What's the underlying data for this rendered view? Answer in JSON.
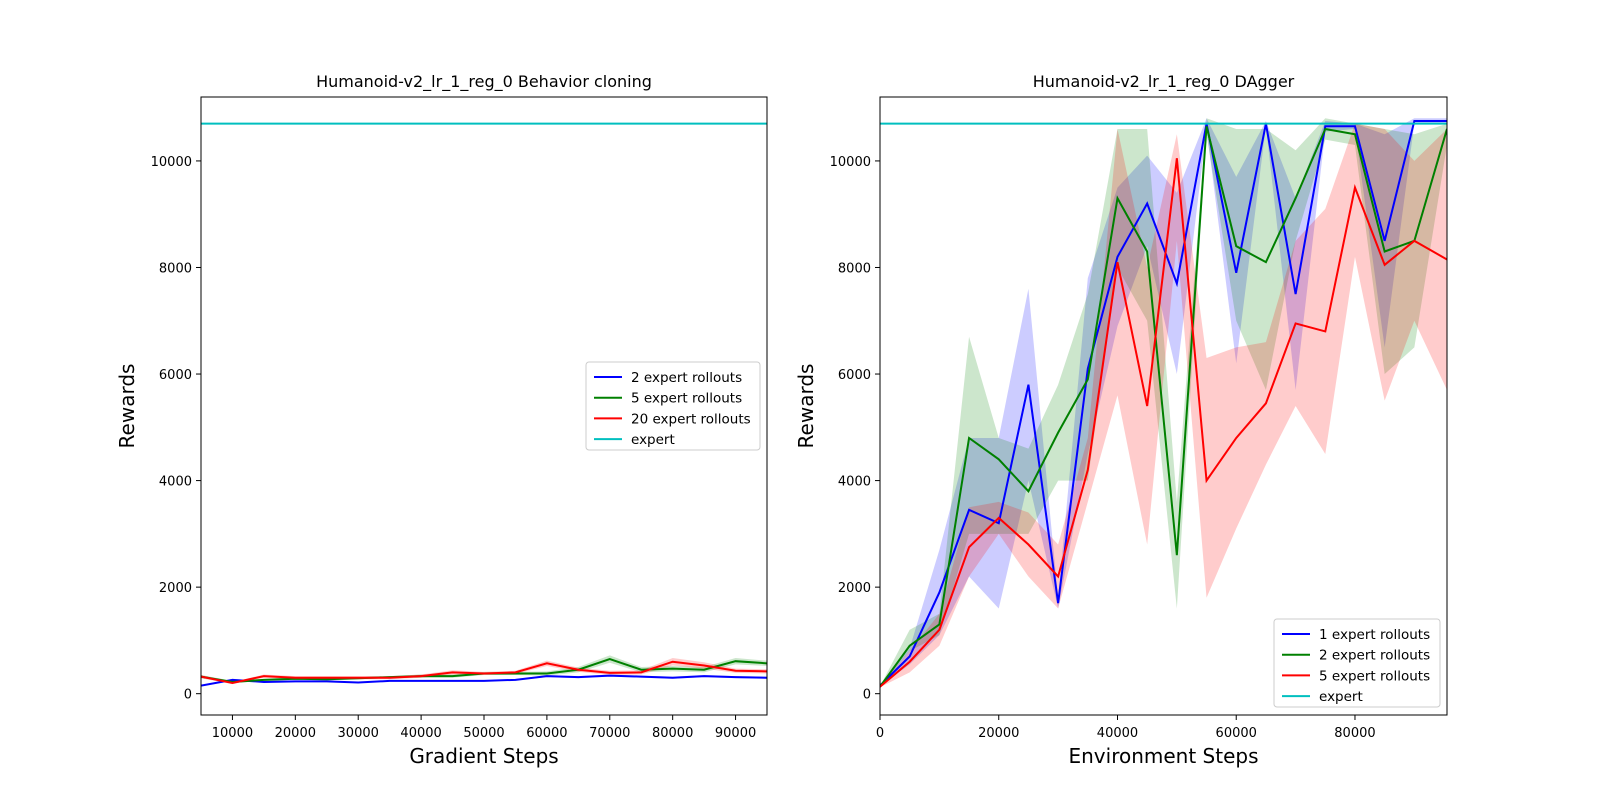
{
  "chart_data": [
    {
      "type": "line",
      "title": "Humanoid-v2_lr_1_reg_0 Behavior cloning",
      "xlabel": "Gradient Steps",
      "ylabel": "Rewards",
      "xlim": [
        5000,
        95000
      ],
      "ylim": [
        -400,
        11200
      ],
      "xticks": [
        10000,
        20000,
        30000,
        40000,
        50000,
        60000,
        70000,
        80000,
        90000
      ],
      "yticks": [
        0,
        2000,
        4000,
        6000,
        8000,
        10000
      ],
      "legend_position": "center-right",
      "x": [
        5000,
        10000,
        15000,
        20000,
        25000,
        30000,
        35000,
        40000,
        45000,
        50000,
        55000,
        60000,
        65000,
        70000,
        75000,
        80000,
        85000,
        90000,
        95000
      ],
      "series": [
        {
          "name": "2 expert rollouts",
          "color": "#0000ff",
          "values": [
            150,
            260,
            220,
            230,
            230,
            210,
            240,
            240,
            240,
            240,
            260,
            330,
            310,
            340,
            320,
            300,
            330,
            310,
            300
          ],
          "band_lo": [
            140,
            240,
            210,
            220,
            220,
            200,
            230,
            230,
            230,
            230,
            250,
            310,
            290,
            320,
            300,
            280,
            310,
            290,
            280
          ],
          "band_hi": [
            160,
            280,
            230,
            240,
            240,
            220,
            250,
            250,
            250,
            250,
            270,
            350,
            330,
            360,
            340,
            320,
            350,
            330,
            320
          ]
        },
        {
          "name": "5 expert rollouts",
          "color": "#008000",
          "values": [
            320,
            220,
            260,
            280,
            270,
            290,
            310,
            330,
            330,
            380,
            380,
            380,
            450,
            650,
            450,
            470,
            450,
            610,
            570
          ],
          "band_lo": [
            290,
            200,
            240,
            260,
            250,
            270,
            290,
            300,
            300,
            350,
            350,
            340,
            400,
            580,
            400,
            420,
            400,
            550,
            520
          ],
          "band_hi": [
            350,
            240,
            280,
            300,
            290,
            310,
            330,
            360,
            360,
            410,
            410,
            420,
            500,
            720,
            500,
            520,
            500,
            670,
            620
          ]
        },
        {
          "name": "20 expert rollouts",
          "color": "#ff0000",
          "values": [
            320,
            200,
            330,
            300,
            300,
            300,
            300,
            330,
            400,
            380,
            400,
            570,
            450,
            390,
            400,
            600,
            530,
            430,
            420
          ],
          "band_lo": [
            290,
            180,
            300,
            270,
            270,
            270,
            270,
            300,
            360,
            350,
            370,
            520,
            410,
            350,
            360,
            530,
            470,
            390,
            380
          ],
          "band_hi": [
            350,
            220,
            360,
            330,
            330,
            330,
            330,
            360,
            440,
            410,
            430,
            620,
            490,
            430,
            440,
            670,
            590,
            470,
            460
          ]
        },
        {
          "name": "expert",
          "color": "#00bfbf",
          "values": [
            10700,
            10700,
            10700,
            10700,
            10700,
            10700,
            10700,
            10700,
            10700,
            10700,
            10700,
            10700,
            10700,
            10700,
            10700,
            10700,
            10700,
            10700,
            10700
          ]
        }
      ]
    },
    {
      "type": "line",
      "title": "Humanoid-v2_lr_1_reg_0 DAgger",
      "xlabel": "Environment Steps",
      "ylabel": "Rewards",
      "xlim": [
        0,
        95500
      ],
      "ylim": [
        -400,
        11200
      ],
      "xticks": [
        0,
        20000,
        40000,
        60000,
        80000
      ],
      "yticks": [
        0,
        2000,
        4000,
        6000,
        8000,
        10000
      ],
      "legend_position": "lower-right",
      "x": [
        0,
        5000,
        10000,
        15000,
        20000,
        25000,
        30000,
        35000,
        40000,
        45000,
        50000,
        55000,
        60000,
        65000,
        70000,
        75000,
        80000,
        85000,
        90000,
        95500
      ],
      "series": [
        {
          "name": "1 expert rollouts",
          "color": "#0000ff",
          "values": [
            150,
            700,
            1900,
            3450,
            3200,
            5800,
            1700,
            6100,
            8200,
            9200,
            7700,
            10700,
            7900,
            10700,
            7500,
            10650,
            10650,
            8500,
            10750,
            10750
          ],
          "band_lo": [
            140,
            550,
            1100,
            2200,
            1600,
            4000,
            1600,
            4500,
            6900,
            8400,
            6000,
            10600,
            6200,
            10650,
            5700,
            10550,
            10600,
            6500,
            10700,
            10700
          ],
          "band_hi": [
            160,
            850,
            2700,
            4800,
            4800,
            7600,
            1800,
            7800,
            9500,
            10100,
            9400,
            10800,
            9700,
            10750,
            9300,
            10750,
            10700,
            10500,
            10800,
            10800
          ]
        },
        {
          "name": "2 expert rollouts",
          "color": "#008000",
          "values": [
            130,
            900,
            1300,
            4800,
            4400,
            3800,
            4900,
            5900,
            9300,
            8300,
            2600,
            10650,
            8400,
            8100,
            9300,
            10600,
            10500,
            8300,
            8500,
            10600
          ],
          "band_lo": [
            120,
            800,
            1100,
            3000,
            3000,
            3000,
            4000,
            4000,
            8000,
            7000,
            1600,
            10500,
            7000,
            5700,
            8500,
            10400,
            10300,
            6000,
            6500,
            10300
          ],
          "band_hi": [
            140,
            1200,
            1500,
            6700,
            4800,
            4600,
            5800,
            7500,
            10600,
            10600,
            3600,
            10800,
            10600,
            10600,
            10200,
            10800,
            10700,
            10600,
            10500,
            10700
          ]
        },
        {
          "name": "5 expert rollouts",
          "color": "#ff0000",
          "values": [
            130,
            600,
            1200,
            2750,
            3300,
            2800,
            2200,
            4200,
            8100,
            5400,
            10050,
            4000,
            4800,
            5450,
            6950,
            6800,
            9500,
            8050,
            8500,
            8150
          ],
          "band_lo": [
            120,
            400,
            900,
            2200,
            3000,
            2200,
            1600,
            3600,
            5600,
            2800,
            8500,
            1800,
            3100,
            4300,
            5400,
            4500,
            8200,
            5500,
            7000,
            5700
          ],
          "band_hi": [
            140,
            800,
            1500,
            3500,
            3600,
            3400,
            2800,
            4800,
            10600,
            8000,
            10500,
            6300,
            6500,
            6600,
            8500,
            9100,
            10700,
            10600,
            10000,
            10600
          ]
        },
        {
          "name": "expert",
          "color": "#00bfbf",
          "values": [
            10700,
            10700,
            10700,
            10700,
            10700,
            10700,
            10700,
            10700,
            10700,
            10700,
            10700,
            10700,
            10700,
            10700,
            10700,
            10700,
            10700,
            10700,
            10700,
            10700
          ]
        }
      ]
    }
  ]
}
